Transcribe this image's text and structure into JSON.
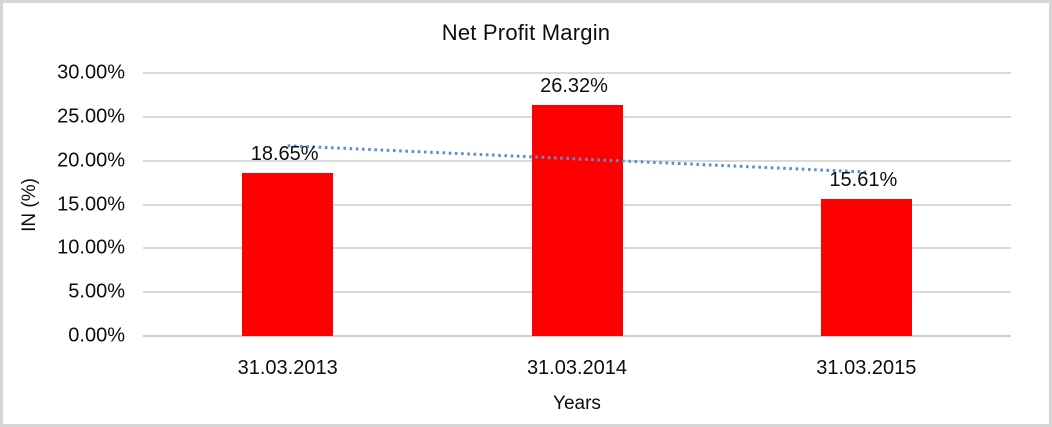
{
  "chart_data": {
    "type": "bar",
    "title": "Net Profit Margin",
    "xlabel": "Years",
    "ylabel": "IN (%)",
    "categories": [
      "31.03.2013",
      "31.03.2014",
      "31.03.2015"
    ],
    "values": [
      18.65,
      26.32,
      15.61
    ],
    "data_labels": [
      "18.65%",
      "26.32%",
      "15.61%"
    ],
    "ylim": [
      0,
      30
    ],
    "ytick_step": 5,
    "ytick_labels": [
      "0.00%",
      "5.00%",
      "10.00%",
      "15.00%",
      "20.00%",
      "25.00%",
      "30.00%"
    ],
    "grid": true,
    "legend": false,
    "bar_color": "#ff0000",
    "trendline": {
      "type": "linear",
      "style": "dotted",
      "color": "#5b8fd0",
      "start_value": 21.7,
      "end_value": 18.7
    }
  }
}
